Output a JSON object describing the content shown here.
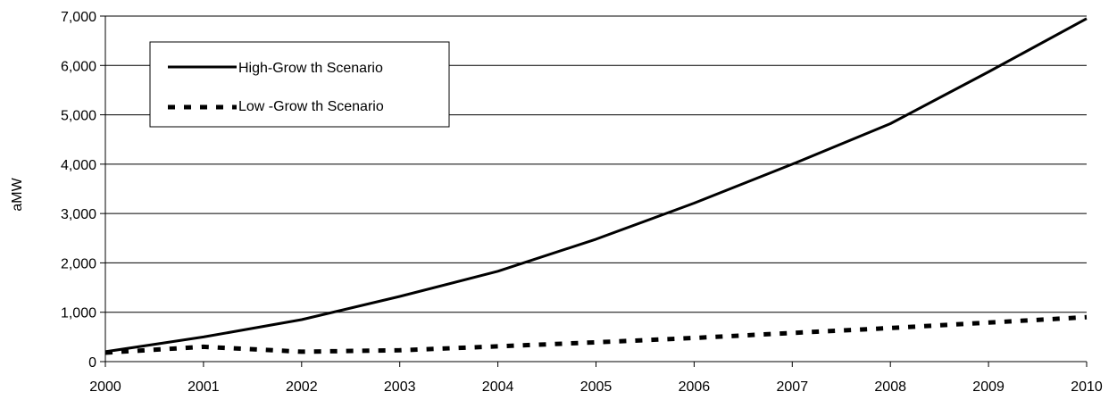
{
  "chart_data": {
    "type": "line",
    "title": "",
    "xlabel": "",
    "ylabel": "aMW",
    "x": [
      2000,
      2001,
      2002,
      2003,
      2004,
      2005,
      2006,
      2007,
      2008,
      2009,
      2010
    ],
    "xlim": [
      2000,
      2010
    ],
    "ylim": [
      0,
      7000
    ],
    "y_ticks": [
      "0",
      "1,000",
      "2,000",
      "3,000",
      "4,000",
      "5,000",
      "6,000",
      "7,000"
    ],
    "x_ticks": [
      "2000",
      "2001",
      "2002",
      "2003",
      "2004",
      "2005",
      "2006",
      "2007",
      "2008",
      "2009",
      "2010"
    ],
    "grid": "horizontal",
    "legend_position": "top-left",
    "series": [
      {
        "name": "High-Grow th Scenario",
        "style": "solid",
        "color": "#000000",
        "values": [
          200,
          500,
          850,
          1320,
          1830,
          2480,
          3210,
          4000,
          4820,
          5870,
          6950
        ]
      },
      {
        "name": "Low -Grow th Scenario",
        "style": "dashed",
        "color": "#000000",
        "values": [
          180,
          300,
          200,
          230,
          310,
          390,
          480,
          580,
          680,
          790,
          900
        ]
      }
    ]
  }
}
